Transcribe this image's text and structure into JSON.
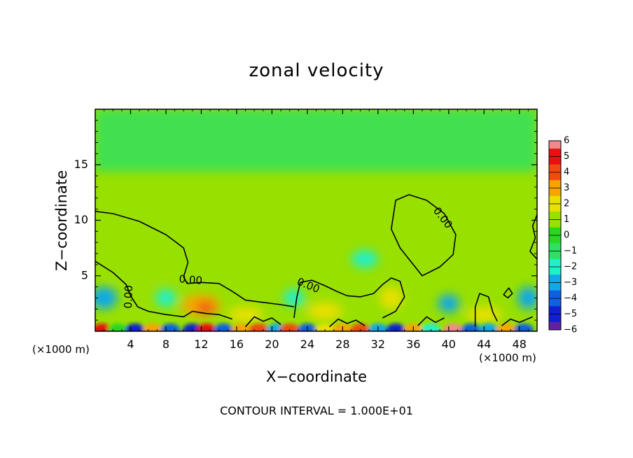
{
  "chart_data": {
    "type": "heatmap",
    "title": "zonal velocity",
    "xlabel": "X−coordinate",
    "ylabel": "Z−coordinate",
    "x_unit_left": "(×1000 m)",
    "x_unit_right": "(×1000 m)",
    "footer": "CONTOUR INTERVAL = 1.000E+01",
    "xlim": [
      0,
      50
    ],
    "ylim": [
      0,
      20
    ],
    "xticks": [
      4,
      8,
      12,
      16,
      20,
      24,
      28,
      32,
      36,
      40,
      44,
      48
    ],
    "xtick_labels": [
      "4",
      "8",
      "12",
      "16",
      "20",
      "24",
      "28",
      "32",
      "36",
      "40",
      "44",
      "48"
    ],
    "yticks": [
      5,
      10,
      15
    ],
    "ytick_labels": [
      "5",
      "10",
      "15"
    ],
    "colorbar": {
      "range": [
        -6,
        6
      ],
      "levels": [
        6,
        5,
        4,
        3,
        2,
        1,
        0,
        -1,
        -2,
        -3,
        -4,
        -5,
        -6
      ],
      "labels": [
        "6",
        "5",
        "4",
        "3",
        "2",
        "1",
        "0",
        "−1",
        "−2",
        "−3",
        "−4",
        "−5",
        "−6"
      ],
      "colors": [
        "#f08a8a",
        "#e81010",
        "#f04a10",
        "#f8a400",
        "#e8e000",
        "#98e000",
        "#28d820",
        "#30e060",
        "#20f0c8",
        "#10a8e8",
        "#1060e0",
        "#1020d0",
        "#6020a0"
      ]
    },
    "contour_labels": [
      {
        "text": "0.00",
        "x": 10.8,
        "z": 4.6,
        "angle": 5
      },
      {
        "text": "0.00",
        "x": 24.1,
        "z": 4.1,
        "angle": 22
      },
      {
        "text": "0.00",
        "x": 39.3,
        "z": 10.2,
        "angle": 52
      },
      {
        "text": "0.00",
        "x": 3.8,
        "z": 3.1,
        "angle": -88
      }
    ],
    "background_level": 0.5,
    "upper_level": -1.5,
    "features": [
      {
        "x": 5,
        "z": 7.5,
        "rx": 5,
        "rz": 3,
        "level": 1.2
      },
      {
        "x": 12,
        "z": 2.3,
        "rx": 2.2,
        "rz": 1,
        "level": 3
      },
      {
        "x": 12.5,
        "z": 2.1,
        "rx": 1,
        "rz": 0.5,
        "level": 4
      },
      {
        "x": 30.5,
        "z": 6.5,
        "rx": 1.5,
        "rz": 0.8,
        "level": -2
      },
      {
        "x": 36.5,
        "z": 8,
        "rx": 3,
        "rz": 2.5,
        "level": 1
      },
      {
        "x": 33.5,
        "z": 3,
        "rx": 1.3,
        "rz": 1,
        "level": 2
      },
      {
        "x": 22.5,
        "z": 3,
        "rx": 1.2,
        "rz": 0.8,
        "level": -2
      },
      {
        "x": 1,
        "z": 3,
        "rx": 1.5,
        "rz": 1,
        "level": -3
      },
      {
        "x": 8,
        "z": 3,
        "rx": 1.2,
        "rz": 0.8,
        "level": -2
      },
      {
        "x": 40,
        "z": 2.5,
        "rx": 1.2,
        "rz": 0.8,
        "level": -3
      },
      {
        "x": 49,
        "z": 3,
        "rx": 1.2,
        "rz": 1,
        "level": -3
      },
      {
        "x": 17,
        "z": 1.5,
        "rx": 2,
        "rz": 0.7,
        "level": 1.5
      },
      {
        "x": 26,
        "z": 1.8,
        "rx": 2,
        "rz": 0.8,
        "level": 1.5
      },
      {
        "x": 44,
        "z": 1.5,
        "rx": 2,
        "rz": 0.7,
        "level": 1.5
      }
    ],
    "surface_blobs": [
      {
        "x": 0.8,
        "level": 5
      },
      {
        "x": 2.5,
        "level": 0
      },
      {
        "x": 4.5,
        "level": -5
      },
      {
        "x": 6.5,
        "level": 3
      },
      {
        "x": 8.5,
        "level": -4
      },
      {
        "x": 11,
        "level": -5
      },
      {
        "x": 12.6,
        "level": 5
      },
      {
        "x": 14.5,
        "level": -4
      },
      {
        "x": 16.5,
        "level": 3
      },
      {
        "x": 18.5,
        "level": 4
      },
      {
        "x": 20.5,
        "level": -3
      },
      {
        "x": 22,
        "level": 4
      },
      {
        "x": 24,
        "level": -4
      },
      {
        "x": 26,
        "level": 2
      },
      {
        "x": 28,
        "level": 3
      },
      {
        "x": 30,
        "level": 4
      },
      {
        "x": 32,
        "level": -3
      },
      {
        "x": 34,
        "level": -5
      },
      {
        "x": 36,
        "level": 3
      },
      {
        "x": 38,
        "level": -2
      },
      {
        "x": 40.5,
        "level": 6
      },
      {
        "x": 42.5,
        "level": -4
      },
      {
        "x": 44.5,
        "level": -3
      },
      {
        "x": 46.5,
        "level": 3
      },
      {
        "x": 48.5,
        "level": -4
      }
    ]
  }
}
